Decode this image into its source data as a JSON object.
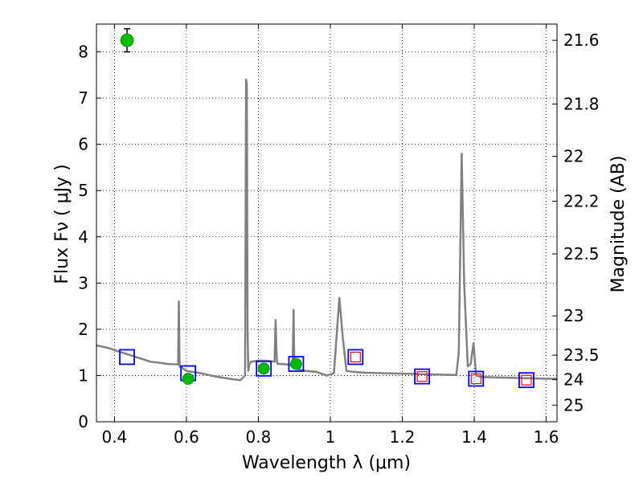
{
  "chart_data": {
    "type": "line",
    "title": "",
    "xlabel": "Wavelength  λ (μm)",
    "ylabel_left": "Flux  Fν  ( μJy )",
    "ylabel_right": "Magnitude (AB)",
    "xlim": [
      0.35,
      1.63
    ],
    "ylim": [
      0,
      8.6
    ],
    "grid": true,
    "x_ticks": [
      0.4,
      0.6,
      0.8,
      1.0,
      1.2,
      1.4,
      1.6
    ],
    "x_tick_labels": [
      "0.4",
      "0.6",
      "0.8",
      "1",
      "1.2",
      "1.4",
      "1.6"
    ],
    "y_ticks": [
      0,
      1,
      2,
      3,
      4,
      5,
      6,
      7,
      8
    ],
    "y_tick_labels": [
      "0",
      "1",
      "2",
      "3",
      "4",
      "5",
      "6",
      "7",
      "8"
    ],
    "right_axis_ticks": [
      {
        "label": "21.6",
        "flux": 8.25
      },
      {
        "label": "21.8",
        "flux": 6.87
      },
      {
        "label": "22",
        "flux": 5.74
      },
      {
        "label": "22.2",
        "flux": 4.77
      },
      {
        "label": "22.5",
        "flux": 3.63
      },
      {
        "label": "23",
        "flux": 2.29
      },
      {
        "label": "23.5",
        "flux": 1.44
      },
      {
        "label": "24",
        "flux": 0.91
      },
      {
        "label": "25",
        "flux": 0.36
      }
    ],
    "series": [
      {
        "name": "model spectrum",
        "style": "line",
        "color": "#808080",
        "x": [
          0.35,
          0.37,
          0.38,
          0.39,
          0.4,
          0.42,
          0.44,
          0.46,
          0.48,
          0.5,
          0.52,
          0.55,
          0.577,
          0.579,
          0.581,
          0.6,
          0.64,
          0.68,
          0.72,
          0.75,
          0.763,
          0.766,
          0.768,
          0.77,
          0.772,
          0.775,
          0.78,
          0.8,
          0.82,
          0.845,
          0.848,
          0.85,
          0.852,
          0.855,
          0.87,
          0.895,
          0.898,
          0.9,
          0.902,
          0.905,
          0.93,
          0.96,
          0.99,
          1.01,
          1.025,
          1.035,
          1.045,
          1.06,
          1.1,
          1.15,
          1.2,
          1.25,
          1.3,
          1.35,
          1.357,
          1.365,
          1.372,
          1.382,
          1.39,
          1.398,
          1.405,
          1.42,
          1.45,
          1.5,
          1.55,
          1.6,
          1.63
        ],
        "y": [
          1.65,
          1.62,
          1.6,
          1.58,
          1.55,
          1.5,
          1.45,
          1.4,
          1.35,
          1.3,
          1.28,
          1.25,
          1.24,
          2.6,
          1.2,
          1.1,
          1.05,
          0.98,
          0.93,
          0.9,
          1.0,
          7.4,
          7.3,
          2.0,
          1.1,
          1.25,
          1.3,
          1.32,
          1.32,
          1.3,
          2.2,
          1.6,
          1.28,
          1.25,
          1.25,
          1.22,
          2.42,
          1.2,
          1.17,
          1.15,
          1.1,
          1.08,
          1.0,
          1.05,
          2.68,
          1.8,
          1.1,
          1.08,
          1.06,
          1.05,
          1.04,
          1.03,
          1.02,
          1.01,
          1.5,
          5.8,
          3.0,
          1.2,
          1.25,
          1.7,
          1.0,
          0.97,
          0.96,
          0.95,
          0.94,
          0.93,
          0.93
        ]
      },
      {
        "name": "model photometry (blue squares)",
        "style": "square-open",
        "color": "#0000ff",
        "x": [
          0.435,
          0.605,
          0.815,
          0.905,
          1.07,
          1.255,
          1.405,
          1.545
        ],
        "y": [
          1.4,
          1.05,
          1.15,
          1.25,
          1.4,
          0.98,
          0.93,
          0.9
        ]
      },
      {
        "name": "observed photometry (red squares)",
        "style": "square-open",
        "color": "#ff0000",
        "x": [
          1.07,
          1.255,
          1.405,
          1.545
        ],
        "y": [
          1.4,
          0.98,
          0.93,
          0.9
        ]
      },
      {
        "name": "observed photometry (green circles)",
        "style": "circle-filled",
        "color": "#00bb00",
        "x": [
          0.435,
          0.605,
          0.815,
          0.905
        ],
        "y": [
          8.25,
          0.93,
          1.15,
          1.25
        ],
        "yerr": [
          0.25,
          0.08,
          0.08,
          0.0
        ]
      }
    ]
  }
}
